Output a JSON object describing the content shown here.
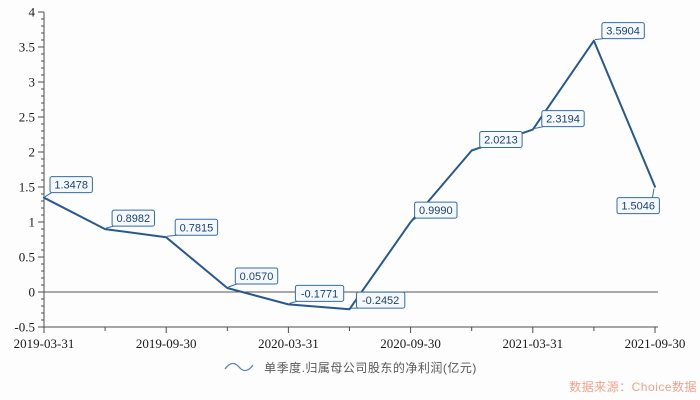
{
  "chart_data": {
    "type": "line",
    "title": "",
    "x": [
      "2019-03-31",
      "2019-06-30",
      "2019-09-30",
      "2019-12-31",
      "2020-03-31",
      "2020-06-30",
      "2020-09-30",
      "2020-12-31",
      "2021-03-31",
      "2021-06-30",
      "2021-09-30"
    ],
    "series": [
      {
        "name": "单季度.归属母公司股东的净利润(亿元)",
        "values": [
          1.3478,
          0.8982,
          0.7815,
          0.057,
          -0.1771,
          -0.2452,
          0.999,
          2.0213,
          2.3194,
          3.5904,
          1.5046
        ]
      }
    ],
    "point_labels": [
      "1.3478",
      "0.8982",
      "0.7815",
      "0.0570",
      "-0.1771",
      "-0.2452",
      "0.9990",
      "2.0213",
      "2.3194",
      "3.5904",
      "1.5046"
    ],
    "ylim": [
      -0.5,
      4
    ],
    "y_ticks": [
      -0.5,
      0,
      0.5,
      1,
      1.5,
      2,
      2.5,
      3,
      3.5,
      4
    ],
    "y_tick_labels": [
      "-0.5",
      "0",
      "0.5",
      "1",
      "1.5",
      "2",
      "2.5",
      "3",
      "3.5",
      "4"
    ],
    "y_minor_tick_step": 0.1,
    "x_tick_labels": [
      "2019-03-31",
      "2019-09-30",
      "2020-03-31",
      "2020-09-30",
      "2021-03-31",
      "2021-09-30"
    ],
    "x_major_tick_indices": [
      0,
      2,
      4,
      6,
      8,
      10
    ],
    "grid": false,
    "zero_line": true,
    "legend_position": "bottom"
  },
  "legend": {
    "label": "单季度.归属母公司股东的净利润(亿元)"
  },
  "source": {
    "text": "数据来源：Choice数据"
  },
  "colors": {
    "line": "#27588f",
    "label_border": "#356ca6",
    "label_fill": "#f5f9fd",
    "label_text": "#1b4075",
    "axis": "#4d4d4d",
    "zero_line": "#555555",
    "tick_text": "#1a1a1a",
    "legend_icon": "#5c86b8",
    "legend_text": "#595959",
    "source_text": "#f2a28b"
  }
}
